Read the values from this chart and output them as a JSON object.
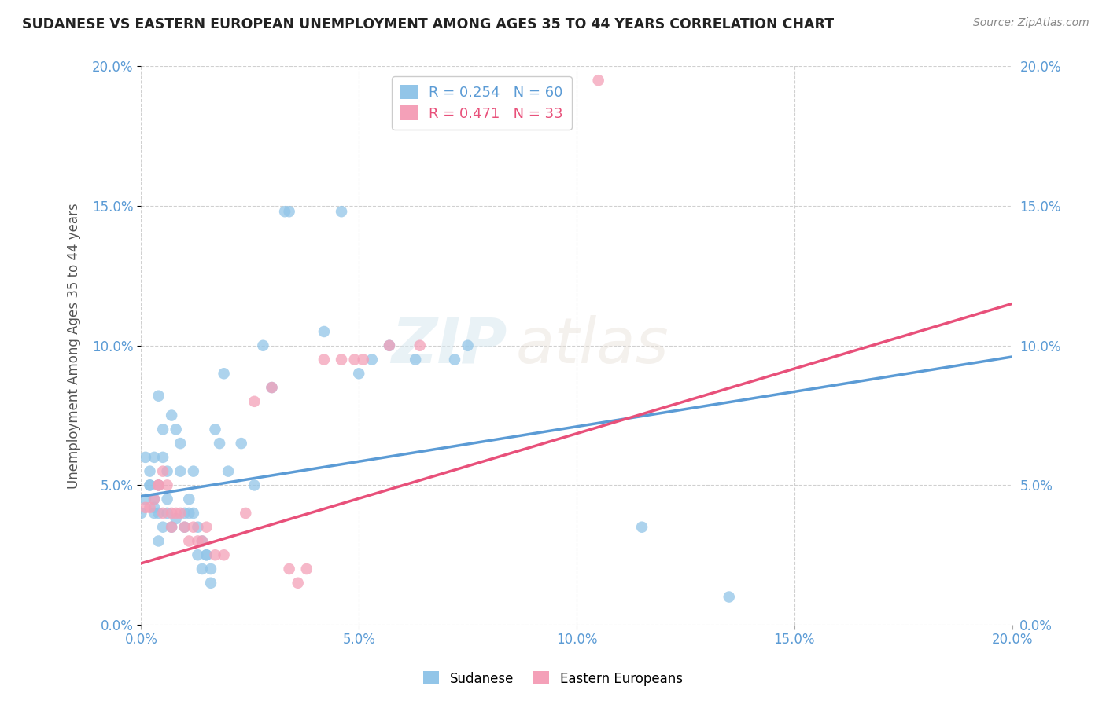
{
  "title": "SUDANESE VS EASTERN EUROPEAN UNEMPLOYMENT AMONG AGES 35 TO 44 YEARS CORRELATION CHART",
  "source": "Source: ZipAtlas.com",
  "ylabel": "Unemployment Among Ages 35 to 44 years",
  "xlim": [
    0.0,
    0.2
  ],
  "ylim": [
    0.0,
    0.2
  ],
  "xticks": [
    0.0,
    0.05,
    0.1,
    0.15,
    0.2
  ],
  "yticks": [
    0.0,
    0.05,
    0.1,
    0.15,
    0.2
  ],
  "xticklabels": [
    "0.0%",
    "5.0%",
    "10.0%",
    "15.0%",
    "20.0%"
  ],
  "yticklabels": [
    "0.0%",
    "5.0%",
    "10.0%",
    "15.0%",
    "20.0%"
  ],
  "sudanese_color": "#92C5E8",
  "eastern_european_color": "#F4A0B8",
  "sudanese_line_color": "#5B9BD5",
  "eastern_european_line_color": "#E8507A",
  "sudanese_label": "Sudanese",
  "eastern_european_label": "Eastern Europeans",
  "sudanese_R": 0.254,
  "sudanese_N": 60,
  "eastern_european_R": 0.471,
  "eastern_european_N": 33,
  "watermark_zip": "ZIP",
  "watermark_atlas": "atlas",
  "grid_color": "#d0d0d0",
  "sudanese_scatter": [
    [
      0.0,
      0.04
    ],
    [
      0.001,
      0.045
    ],
    [
      0.001,
      0.06
    ],
    [
      0.002,
      0.05
    ],
    [
      0.002,
      0.05
    ],
    [
      0.002,
      0.055
    ],
    [
      0.003,
      0.04
    ],
    [
      0.003,
      0.045
    ],
    [
      0.003,
      0.06
    ],
    [
      0.003,
      0.042
    ],
    [
      0.004,
      0.05
    ],
    [
      0.004,
      0.082
    ],
    [
      0.004,
      0.04
    ],
    [
      0.004,
      0.03
    ],
    [
      0.005,
      0.07
    ],
    [
      0.005,
      0.06
    ],
    [
      0.005,
      0.035
    ],
    [
      0.006,
      0.04
    ],
    [
      0.006,
      0.055
    ],
    [
      0.006,
      0.045
    ],
    [
      0.007,
      0.035
    ],
    [
      0.007,
      0.075
    ],
    [
      0.008,
      0.07
    ],
    [
      0.008,
      0.038
    ],
    [
      0.009,
      0.065
    ],
    [
      0.009,
      0.055
    ],
    [
      0.01,
      0.04
    ],
    [
      0.01,
      0.035
    ],
    [
      0.011,
      0.04
    ],
    [
      0.011,
      0.045
    ],
    [
      0.012,
      0.055
    ],
    [
      0.012,
      0.04
    ],
    [
      0.013,
      0.035
    ],
    [
      0.013,
      0.025
    ],
    [
      0.014,
      0.02
    ],
    [
      0.014,
      0.03
    ],
    [
      0.015,
      0.025
    ],
    [
      0.015,
      0.025
    ],
    [
      0.016,
      0.015
    ],
    [
      0.016,
      0.02
    ],
    [
      0.017,
      0.07
    ],
    [
      0.018,
      0.065
    ],
    [
      0.019,
      0.09
    ],
    [
      0.02,
      0.055
    ],
    [
      0.023,
      0.065
    ],
    [
      0.026,
      0.05
    ],
    [
      0.028,
      0.1
    ],
    [
      0.03,
      0.085
    ],
    [
      0.033,
      0.148
    ],
    [
      0.034,
      0.148
    ],
    [
      0.042,
      0.105
    ],
    [
      0.046,
      0.148
    ],
    [
      0.05,
      0.09
    ],
    [
      0.053,
      0.095
    ],
    [
      0.057,
      0.1
    ],
    [
      0.063,
      0.095
    ],
    [
      0.072,
      0.095
    ],
    [
      0.075,
      0.1
    ],
    [
      0.115,
      0.035
    ],
    [
      0.135,
      0.01
    ]
  ],
  "eastern_european_scatter": [
    [
      0.001,
      0.042
    ],
    [
      0.002,
      0.042
    ],
    [
      0.003,
      0.045
    ],
    [
      0.004,
      0.05
    ],
    [
      0.004,
      0.05
    ],
    [
      0.005,
      0.04
    ],
    [
      0.005,
      0.055
    ],
    [
      0.006,
      0.05
    ],
    [
      0.007,
      0.04
    ],
    [
      0.007,
      0.035
    ],
    [
      0.008,
      0.04
    ],
    [
      0.009,
      0.04
    ],
    [
      0.01,
      0.035
    ],
    [
      0.011,
      0.03
    ],
    [
      0.012,
      0.035
    ],
    [
      0.013,
      0.03
    ],
    [
      0.014,
      0.03
    ],
    [
      0.015,
      0.035
    ],
    [
      0.017,
      0.025
    ],
    [
      0.019,
      0.025
    ],
    [
      0.024,
      0.04
    ],
    [
      0.026,
      0.08
    ],
    [
      0.03,
      0.085
    ],
    [
      0.034,
      0.02
    ],
    [
      0.036,
      0.015
    ],
    [
      0.038,
      0.02
    ],
    [
      0.042,
      0.095
    ],
    [
      0.046,
      0.095
    ],
    [
      0.049,
      0.095
    ],
    [
      0.051,
      0.095
    ],
    [
      0.057,
      0.1
    ],
    [
      0.064,
      0.1
    ],
    [
      0.105,
      0.195
    ]
  ],
  "sudanese_line_x": [
    0.0,
    0.2
  ],
  "sudanese_line_y": [
    0.046,
    0.096
  ],
  "eastern_european_line_x": [
    0.0,
    0.2
  ],
  "eastern_european_line_y": [
    0.022,
    0.115
  ]
}
